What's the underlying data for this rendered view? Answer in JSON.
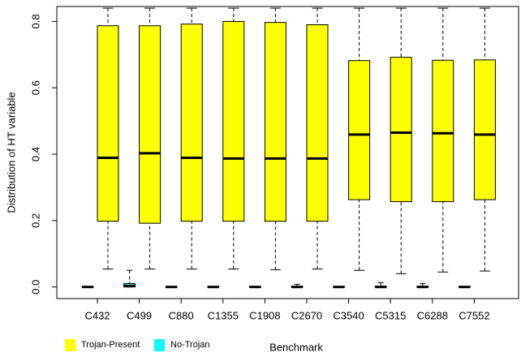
{
  "chart_data": {
    "type": "box",
    "y_label": "Distribution of HT variable",
    "x_label": "Benchmark",
    "categories": [
      "C432",
      "C499",
      "C880",
      "C1355",
      "C1908",
      "C2670",
      "C3540",
      "C5315",
      "C6288",
      "C7552"
    ],
    "ylim": [
      -0.035,
      0.845
    ],
    "yticks": [
      {
        "value": 0,
        "label": "0.0"
      },
      0.2,
      0.4,
      0.6,
      0.8
    ],
    "series": [
      {
        "name": "Trojan-Present",
        "color": "#ffff00",
        "min": [
          0.054,
          0.054,
          0.054,
          0.054,
          0.052,
          0.054,
          0.05,
          0.04,
          0.045,
          0.048
        ],
        "q1": [
          0.198,
          0.192,
          0.198,
          0.198,
          0.198,
          0.198,
          0.263,
          0.257,
          0.257,
          0.263
        ],
        "median": [
          0.389,
          0.403,
          0.389,
          0.387,
          0.387,
          0.387,
          0.459,
          0.465,
          0.463,
          0.459
        ],
        "q3": [
          0.787,
          0.787,
          0.792,
          0.8,
          0.797,
          0.79,
          0.682,
          0.692,
          0.683,
          0.684
        ],
        "max": [
          0.84,
          0.84,
          0.84,
          0.84,
          0.84,
          0.84,
          0.84,
          0.84,
          0.84,
          0.84
        ]
      },
      {
        "name": "No-Trojan",
        "color": "#00ffff",
        "min": [
          0,
          0,
          0,
          0,
          0,
          0,
          0,
          0,
          0,
          0
        ],
        "q1": [
          0,
          0,
          0,
          0,
          0,
          0,
          0,
          0,
          0,
          0
        ],
        "median": [
          0,
          0.003,
          0,
          0,
          0,
          0,
          0,
          0,
          0,
          0
        ],
        "q3": [
          0.001,
          0.01,
          0.001,
          0.001,
          0.001,
          0.002,
          0.001,
          0.002,
          0.002,
          0.001
        ],
        "max": [
          0.001,
          0.05,
          0.001,
          0.001,
          0.001,
          0.008,
          0.001,
          0.013,
          0.01,
          0.001
        ]
      }
    ]
  }
}
